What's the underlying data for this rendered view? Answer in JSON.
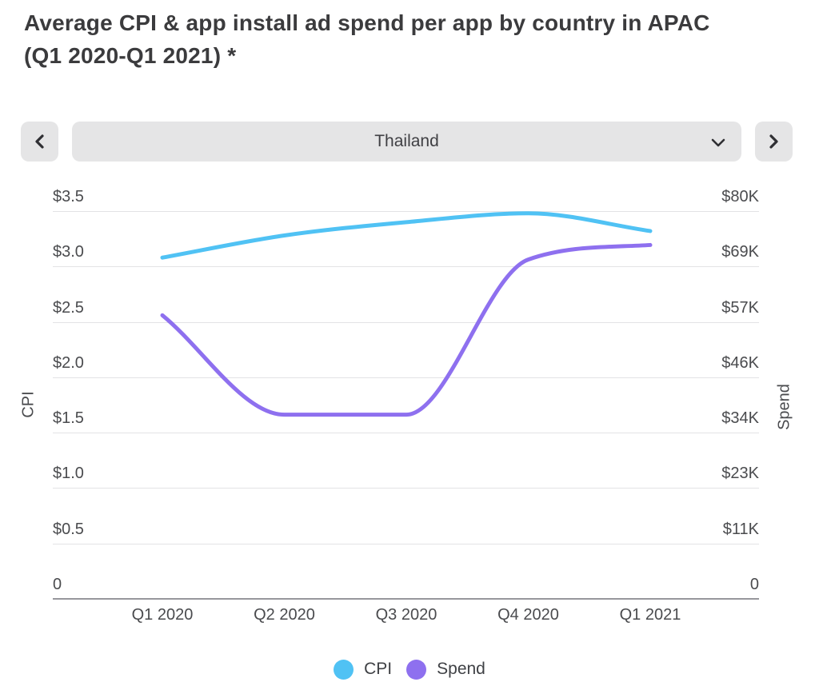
{
  "title": {
    "line1": "Average CPI & app install ad spend per app by country in APAC",
    "line2": "(Q1 2020-Q1 2021) *"
  },
  "selector": {
    "value": "Thailand"
  },
  "icons": {
    "prev": "chevron-left",
    "next": "chevron-right",
    "select": "chevron-down"
  },
  "chart_data": {
    "type": "line",
    "title": "Average CPI & app install ad spend per app by country in APAC (Q1 2020-Q1 2021) *",
    "curve": "monotone",
    "grid": "horizontal",
    "categories": [
      "Q1 2020",
      "Q2 2020",
      "Q3 2020",
      "Q4 2020",
      "Q1 2021"
    ],
    "series": [
      {
        "name": "CPI",
        "axis": "left",
        "color": "#50C2F4",
        "values": [
          3.08,
          3.28,
          3.4,
          3.48,
          3.32
        ]
      },
      {
        "name": "Spend",
        "axis": "right",
        "color": "#8E70EF",
        "values": [
          58500,
          38000,
          38000,
          70000,
          73000
        ]
      }
    ],
    "left_axis": {
      "label": "CPI",
      "min": 0,
      "max": 3.5,
      "tick_labels": [
        "$3.5",
        "$3.0",
        "$2.5",
        "$2.0",
        "$1.5",
        "$1.0",
        "$0.5",
        "0"
      ]
    },
    "right_axis": {
      "label": "Spend",
      "min": 0,
      "max": 80000,
      "tick_labels": [
        "$80K",
        "$69K",
        "$57K",
        "$46K",
        "$34K",
        "$23K",
        "$11K",
        "0"
      ]
    },
    "legend": [
      {
        "label": "CPI",
        "color": "#50C2F4"
      },
      {
        "label": "Spend",
        "color": "#8E70EF"
      }
    ],
    "legend_position": "bottom"
  },
  "colors": {
    "line_cpi": "#50C2F4",
    "line_spend": "#8E70EF",
    "control_bg": "#E5E5E6",
    "gridline": "#E3E3E5",
    "axis_line": "#97979C",
    "text": "#4A4B4E",
    "title_text": "#3B3B3D"
  }
}
